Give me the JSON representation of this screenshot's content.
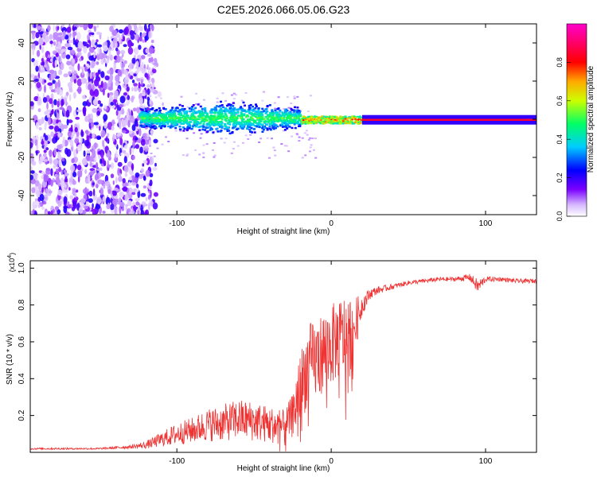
{
  "title": "C2E5.2026.066.05.06.G23",
  "chart_data": [
    {
      "type": "heatmap",
      "name": "spectrogram",
      "xlabel": "Height of straight line (km)",
      "ylabel": "Frequency (Hz)",
      "xlim": [
        -195,
        133
      ],
      "ylim": [
        -50,
        50
      ],
      "xticks": [
        -100,
        0,
        100
      ],
      "xtick_labels": [
        "-100",
        "0",
        "100"
      ],
      "yticks": [
        -40,
        -20,
        0,
        20,
        40
      ],
      "ytick_labels": [
        "-40",
        "-20",
        "0",
        "20",
        "40"
      ],
      "colorbar": {
        "label": "Normalized spectral amplitude",
        "range": [
          0,
          1
        ],
        "ticks": [
          0.0,
          0.2,
          0.4,
          0.6,
          0.8
        ],
        "tick_labels": [
          "0.0",
          "0.2",
          "0.4",
          "0.6",
          "0.8"
        ],
        "colors": [
          "#ffffff",
          "#7a00ff",
          "#0000ff",
          "#00ccff",
          "#00ff66",
          "#ccff00",
          "#ffaa00",
          "#ff0000",
          "#ff0066",
          "#ff00cc"
        ]
      },
      "regions": [
        {
          "x_range": [
            -195,
            -115
          ],
          "f_range": [
            -50,
            50
          ],
          "amplitude": 0.1,
          "description": "broadband noise"
        },
        {
          "x_range": [
            -125,
            -20
          ],
          "f_range": [
            -8,
            10
          ],
          "amplitude": 0.3,
          "description": "spread signal"
        },
        {
          "x_range": [
            -20,
            20
          ],
          "f_range": [
            -2,
            2
          ],
          "amplitude": 0.8,
          "description": "narrow signal"
        },
        {
          "x_range": [
            20,
            133
          ],
          "f_range": [
            -2,
            1
          ],
          "amplitude": 0.95,
          "description": "carrier line"
        }
      ]
    },
    {
      "type": "line",
      "name": "snr",
      "xlabel": "Height of straight line (km)",
      "ylabel": "SNR (10 * v/v)",
      "y_multiplier": "(x10",
      "y_multiplier_exp": "4",
      "y_multiplier_close": ")",
      "xlim": [
        -195,
        133
      ],
      "ylim": [
        0,
        1.04
      ],
      "xticks": [
        -100,
        0,
        100
      ],
      "xtick_labels": [
        "-100",
        "0",
        "100"
      ],
      "yticks": [
        0.2,
        0.4,
        0.6,
        0.8,
        1.0
      ],
      "ytick_labels": [
        "0.2",
        "0.4",
        "0.6",
        "0.8",
        "1.0"
      ],
      "color": "#ee3333",
      "x": [
        -195,
        -150,
        -130,
        -120,
        -110,
        -100,
        -90,
        -80,
        -70,
        -60,
        -50,
        -40,
        -30,
        -25,
        -20,
        -15,
        -10,
        -5,
        0,
        5,
        10,
        15,
        20,
        25,
        30,
        40,
        50,
        60,
        70,
        80,
        90,
        95,
        100,
        110,
        120,
        133
      ],
      "y": [
        0.02,
        0.02,
        0.03,
        0.04,
        0.07,
        0.1,
        0.12,
        0.15,
        0.16,
        0.18,
        0.17,
        0.15,
        0.14,
        0.2,
        0.35,
        0.48,
        0.5,
        0.55,
        0.58,
        0.62,
        0.62,
        0.68,
        0.8,
        0.86,
        0.88,
        0.9,
        0.92,
        0.93,
        0.94,
        0.94,
        0.95,
        0.9,
        0.94,
        0.94,
        0.93,
        0.93
      ],
      "noise_amplitude": [
        0.005,
        0.005,
        0.01,
        0.02,
        0.04,
        0.06,
        0.07,
        0.09,
        0.1,
        0.11,
        0.11,
        0.1,
        0.09,
        0.12,
        0.2,
        0.22,
        0.22,
        0.22,
        0.22,
        0.22,
        0.25,
        0.16,
        0.06,
        0.03,
        0.02,
        0.015,
        0.012,
        0.012,
        0.012,
        0.012,
        0.02,
        0.04,
        0.015,
        0.012,
        0.012,
        0.012
      ]
    }
  ]
}
